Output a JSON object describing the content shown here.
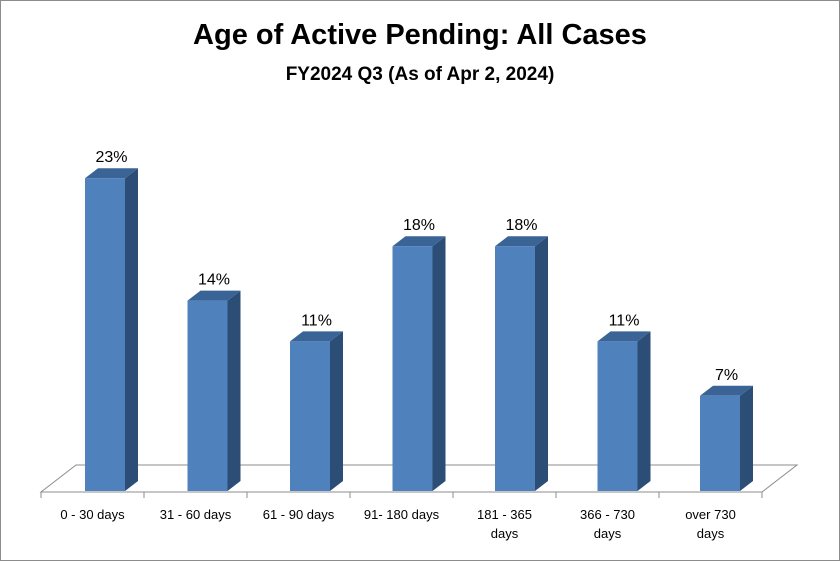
{
  "chart_data": {
    "type": "bar",
    "title": "Age of Active Pending: All Cases",
    "subtitle": "FY2024 Q3 (As of Apr 2, 2024)",
    "categories": [
      [
        "0 - 30 days"
      ],
      [
        "31 - 60 days"
      ],
      [
        "61 - 90 days"
      ],
      [
        "91- 180 days"
      ],
      [
        "181 - 365",
        "days"
      ],
      [
        "366 - 730",
        "days"
      ],
      [
        "over 730",
        "days"
      ]
    ],
    "values": [
      23,
      14,
      11,
      18,
      18,
      11,
      7
    ],
    "value_labels": [
      "23%",
      "14%",
      "11%",
      "18%",
      "18%",
      "11%",
      "7%"
    ],
    "unit": "%",
    "ylim": [
      0,
      23
    ],
    "grid": false,
    "legend": "none",
    "colors": {
      "bar_front": "#4f81bd",
      "bar_side": "#2c4d75",
      "bar_top": "#3a6496",
      "floor_line": "#8c8c8c"
    }
  }
}
